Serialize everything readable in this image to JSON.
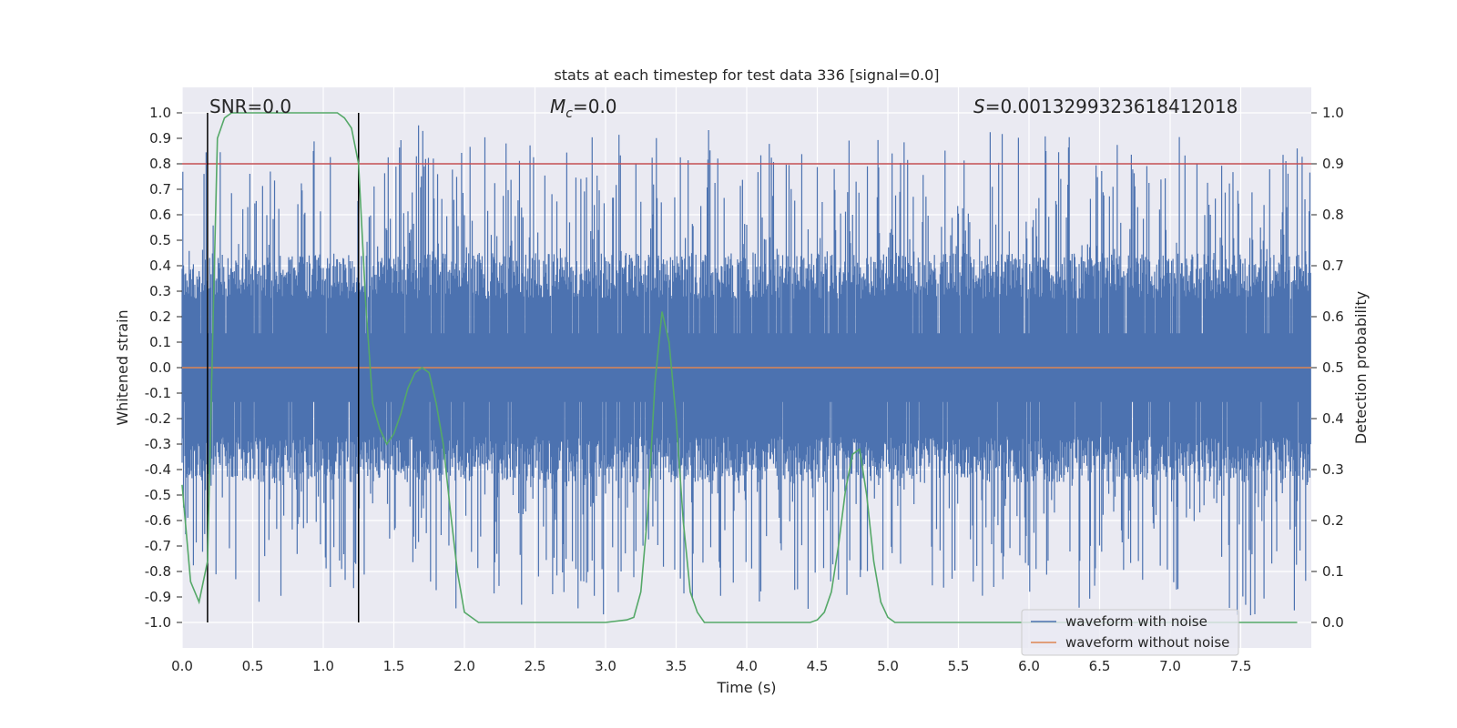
{
  "chart_data": {
    "type": "line",
    "title": "stats at each timestep for test data 336 [signal=0.0]",
    "xlabel": "Time (s)",
    "ylabel": "Whitened strain",
    "y2label": "Detection probability",
    "xlim": [
      0.0,
      8.0
    ],
    "ylim": [
      -1.1,
      1.1
    ],
    "y2lim": [
      -0.05,
      1.05
    ],
    "x_ticks": [
      "0.0",
      "0.5",
      "1.0",
      "1.5",
      "2.0",
      "2.5",
      "3.0",
      "3.5",
      "4.0",
      "4.5",
      "5.0",
      "5.5",
      "6.0",
      "6.5",
      "7.0",
      "7.5"
    ],
    "y_ticks": [
      "1.0",
      "0.9",
      "0.8",
      "0.7",
      "0.6",
      "0.5",
      "0.4",
      "0.3",
      "0.2",
      "0.1",
      "0.0",
      "-0.1",
      "-0.2",
      "-0.3",
      "-0.4",
      "-0.5",
      "-0.6",
      "-0.7",
      "-0.8",
      "-0.9",
      "-1.0"
    ],
    "y2_ticks": [
      "1.0",
      "0.9",
      "0.8",
      "0.7",
      "0.6",
      "0.5",
      "0.4",
      "0.3",
      "0.2",
      "0.1",
      "0.0"
    ],
    "annotations": {
      "snr": "SNR=0.0",
      "mc_symbol": "M",
      "mc_sub": "c",
      "mc_value": "=0.0",
      "s_symbol": "S",
      "s_value": "=0.0013299323618412018"
    },
    "threshold": 0.9,
    "vertical_lines": [
      0.18,
      1.25
    ],
    "series": [
      {
        "name": "waveform with noise",
        "color": "#4c72b0",
        "axis": "left",
        "kind": "noise",
        "duration": 8.0,
        "envelope": 0.45,
        "peak_max": 0.98,
        "peak_min": -1.0
      },
      {
        "name": "waveform without noise",
        "color": "#dd8452",
        "axis": "left",
        "x": [
          0.0,
          8.0
        ],
        "y": [
          0.0,
          0.0
        ]
      },
      {
        "name": "detection probability",
        "color": "#55a868",
        "axis": "right",
        "x": [
          0.0,
          0.06,
          0.12,
          0.18,
          0.22,
          0.25,
          0.3,
          0.35,
          0.5,
          0.75,
          1.0,
          1.1,
          1.15,
          1.2,
          1.25,
          1.3,
          1.35,
          1.4,
          1.45,
          1.5,
          1.55,
          1.6,
          1.65,
          1.7,
          1.75,
          1.8,
          1.85,
          1.9,
          1.95,
          2.0,
          2.05,
          2.1,
          2.5,
          3.0,
          3.15,
          3.2,
          3.25,
          3.3,
          3.35,
          3.4,
          3.45,
          3.5,
          3.55,
          3.6,
          3.65,
          3.7,
          4.0,
          4.45,
          4.5,
          4.55,
          4.6,
          4.65,
          4.7,
          4.75,
          4.8,
          4.85,
          4.9,
          4.95,
          5.0,
          5.05,
          5.5,
          6.0,
          7.0,
          7.9
        ],
        "y": [
          0.27,
          0.08,
          0.04,
          0.12,
          0.6,
          0.95,
          0.99,
          1.0,
          1.0,
          1.0,
          1.0,
          1.0,
          0.99,
          0.97,
          0.9,
          0.63,
          0.43,
          0.38,
          0.35,
          0.37,
          0.41,
          0.46,
          0.49,
          0.5,
          0.49,
          0.43,
          0.35,
          0.22,
          0.1,
          0.02,
          0.01,
          0.0,
          0.0,
          0.0,
          0.005,
          0.01,
          0.06,
          0.22,
          0.47,
          0.61,
          0.55,
          0.4,
          0.2,
          0.06,
          0.02,
          0.0,
          0.0,
          0.0,
          0.005,
          0.02,
          0.06,
          0.15,
          0.26,
          0.33,
          0.34,
          0.25,
          0.12,
          0.04,
          0.01,
          0.0,
          0.0,
          0.0,
          0.0,
          0.0
        ]
      }
    ],
    "legend": {
      "position": "lower-right",
      "entries": [
        {
          "label": "waveform with noise",
          "color": "#4c72b0"
        },
        {
          "label": "waveform without noise",
          "color": "#dd8452"
        }
      ]
    },
    "colors": {
      "plot_background": "#eaeaf2",
      "grid": "#ffffff",
      "threshold": "#c44e52",
      "vertical": "#000000"
    }
  }
}
